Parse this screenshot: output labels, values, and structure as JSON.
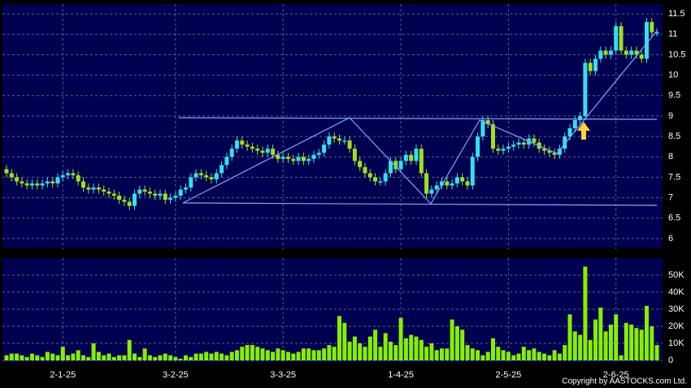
{
  "chart_data": [
    {
      "type": "candlestick",
      "categories": [
        null,
        null,
        null,
        null,
        null,
        null,
        null,
        null,
        null,
        null,
        null,
        "2-1-25",
        null,
        null,
        null,
        null,
        null,
        null,
        null,
        null,
        null,
        null,
        null,
        null,
        null,
        null,
        null,
        null,
        null,
        null,
        null,
        null,
        null,
        "3-2-25",
        null,
        null,
        null,
        null,
        null,
        null,
        null,
        null,
        null,
        null,
        null,
        null,
        null,
        null,
        null,
        null,
        null,
        null,
        null,
        null,
        "3-3-25",
        null,
        null,
        null,
        null,
        null,
        null,
        null,
        null,
        null,
        null,
        null,
        null,
        null,
        null,
        null,
        null,
        null,
        null,
        null,
        null,
        null,
        null,
        "1-4-25",
        null,
        null,
        null,
        null,
        null,
        null,
        null,
        null,
        null,
        null,
        null,
        null,
        null,
        null,
        null,
        null,
        null,
        null,
        null,
        null,
        "2-5-25",
        null,
        null,
        null,
        null,
        null,
        null,
        null,
        null,
        null,
        null,
        null,
        null,
        null,
        null,
        null,
        null,
        null,
        null,
        null,
        null,
        "2-6-25",
        null,
        null,
        null,
        null,
        null,
        null,
        null,
        null
      ],
      "open": [
        7.7,
        7.6,
        7.5,
        7.4,
        7.35,
        7.3,
        7.35,
        7.3,
        7.35,
        7.4,
        7.35,
        7.5,
        7.55,
        7.6,
        7.55,
        7.4,
        7.25,
        7.2,
        7.25,
        7.2,
        7.15,
        7.1,
        7.05,
        6.95,
        6.9,
        6.8,
        7.1,
        7.2,
        7.15,
        7.1,
        7.05,
        7.1,
        6.95,
        7.0,
        7.05,
        7.2,
        7.25,
        7.5,
        7.6,
        7.55,
        7.5,
        7.45,
        7.6,
        7.8,
        8.0,
        8.2,
        8.4,
        8.3,
        8.25,
        8.2,
        8.15,
        8.1,
        8.2,
        8.05,
        7.95,
        8.0,
        7.95,
        7.9,
        8.0,
        7.9,
        7.95,
        8.05,
        8.1,
        8.3,
        8.5,
        8.45,
        8.4,
        8.4,
        8.2,
        7.9,
        7.75,
        7.6,
        7.5,
        7.4,
        7.4,
        7.6,
        7.9,
        7.7,
        7.9,
        8.05,
        7.9,
        8.2,
        7.6,
        7.1,
        7.2,
        7.3,
        7.4,
        7.3,
        7.35,
        7.5,
        7.4,
        7.3,
        8.0,
        8.5,
        8.9,
        8.8,
        8.2,
        8.15,
        8.2,
        8.25,
        8.3,
        8.35,
        8.3,
        8.45,
        8.35,
        8.2,
        8.15,
        8.1,
        8.05,
        8.2,
        8.5,
        8.7,
        8.9,
        9.0,
        10.3,
        10.1,
        10.4,
        10.6,
        10.5,
        10.6,
        11.2,
        10.6,
        10.5,
        10.6,
        10.5,
        10.4,
        11.3,
        11.05
      ],
      "high": [
        7.8,
        7.7,
        7.6,
        7.5,
        7.45,
        7.45,
        7.45,
        7.45,
        7.5,
        7.5,
        7.6,
        7.65,
        7.7,
        7.7,
        7.65,
        7.5,
        7.35,
        7.35,
        7.35,
        7.3,
        7.25,
        7.2,
        7.15,
        7.05,
        7.0,
        7.2,
        7.3,
        7.3,
        7.25,
        7.2,
        7.2,
        7.2,
        7.1,
        7.15,
        7.3,
        7.35,
        7.6,
        7.7,
        7.7,
        7.65,
        7.6,
        7.7,
        7.9,
        8.1,
        8.3,
        8.5,
        8.5,
        8.4,
        8.35,
        8.3,
        8.25,
        8.3,
        8.3,
        8.15,
        8.1,
        8.1,
        8.05,
        8.1,
        8.1,
        8.05,
        8.15,
        8.2,
        8.4,
        8.6,
        8.6,
        8.55,
        8.5,
        8.5,
        8.3,
        8.0,
        7.85,
        7.7,
        7.6,
        7.5,
        7.7,
        8.0,
        8.0,
        8.0,
        8.15,
        8.15,
        8.3,
        8.3,
        7.7,
        7.3,
        7.4,
        7.5,
        7.5,
        7.45,
        7.6,
        7.6,
        7.5,
        8.1,
        8.6,
        9.0,
        9.0,
        8.9,
        8.3,
        8.3,
        8.35,
        8.4,
        8.45,
        8.45,
        8.55,
        8.55,
        8.45,
        8.3,
        8.25,
        8.2,
        8.3,
        8.6,
        8.8,
        9.0,
        9.1,
        10.4,
        10.4,
        10.5,
        10.7,
        10.7,
        10.7,
        11.3,
        11.3,
        10.7,
        10.7,
        10.7,
        10.6,
        11.4,
        11.4,
        11.15
      ],
      "low": [
        7.5,
        7.4,
        7.3,
        7.25,
        7.2,
        7.2,
        7.2,
        7.2,
        7.25,
        7.25,
        7.25,
        7.4,
        7.45,
        7.45,
        7.3,
        7.15,
        7.1,
        7.1,
        7.1,
        7.05,
        7.0,
        6.95,
        6.85,
        6.8,
        6.7,
        6.7,
        7.0,
        7.05,
        7.0,
        6.95,
        6.95,
        6.85,
        6.85,
        6.9,
        6.95,
        7.1,
        7.15,
        7.4,
        7.45,
        7.4,
        7.35,
        7.35,
        7.5,
        7.7,
        7.9,
        8.1,
        8.2,
        8.15,
        8.1,
        8.05,
        8.0,
        8.0,
        7.95,
        7.85,
        7.85,
        7.85,
        7.8,
        7.8,
        7.8,
        7.8,
        7.85,
        7.95,
        8.0,
        8.2,
        8.35,
        8.3,
        8.3,
        8.1,
        7.8,
        7.65,
        7.5,
        7.4,
        7.3,
        7.3,
        7.3,
        7.5,
        7.6,
        7.6,
        7.8,
        7.8,
        7.8,
        7.5,
        7.0,
        7.0,
        7.1,
        7.2,
        7.2,
        7.2,
        7.25,
        7.3,
        7.2,
        7.2,
        7.9,
        8.4,
        8.7,
        8.1,
        8.05,
        8.05,
        8.1,
        8.15,
        8.2,
        8.2,
        8.2,
        8.25,
        8.1,
        8.05,
        8.0,
        7.95,
        7.95,
        8.1,
        8.4,
        8.6,
        8.8,
        8.9,
        10.0,
        10.0,
        10.3,
        10.4,
        10.4,
        10.5,
        10.5,
        10.4,
        10.4,
        10.4,
        10.3,
        10.3,
        10.95,
        10.95
      ],
      "close": [
        7.6,
        7.5,
        7.4,
        7.35,
        7.3,
        7.35,
        7.3,
        7.35,
        7.4,
        7.35,
        7.5,
        7.55,
        7.6,
        7.55,
        7.4,
        7.25,
        7.2,
        7.25,
        7.2,
        7.15,
        7.1,
        7.05,
        6.95,
        6.9,
        6.8,
        7.1,
        7.2,
        7.15,
        7.1,
        7.05,
        7.1,
        6.95,
        7.0,
        7.05,
        7.2,
        7.25,
        7.5,
        7.6,
        7.55,
        7.5,
        7.45,
        7.6,
        7.8,
        8.0,
        8.2,
        8.4,
        8.3,
        8.25,
        8.2,
        8.15,
        8.1,
        8.2,
        8.05,
        7.95,
        8.0,
        7.95,
        7.9,
        8.0,
        7.9,
        7.95,
        8.05,
        8.1,
        8.3,
        8.5,
        8.45,
        8.4,
        8.4,
        8.2,
        7.9,
        7.75,
        7.6,
        7.5,
        7.4,
        7.4,
        7.6,
        7.9,
        7.7,
        7.9,
        8.05,
        7.9,
        8.2,
        7.6,
        7.1,
        7.2,
        7.3,
        7.4,
        7.3,
        7.35,
        7.5,
        7.4,
        7.3,
        8.0,
        8.5,
        8.9,
        8.8,
        8.2,
        8.15,
        8.2,
        8.25,
        8.3,
        8.35,
        8.3,
        8.45,
        8.35,
        8.2,
        8.15,
        8.1,
        8.05,
        8.2,
        8.5,
        8.7,
        8.9,
        9.0,
        10.3,
        10.1,
        10.4,
        10.6,
        10.5,
        10.6,
        11.2,
        10.6,
        10.5,
        10.6,
        10.5,
        10.4,
        11.3,
        11.05,
        11.05
      ],
      "up_color": "#33e0f0",
      "down_color": "#a0e020",
      "ylim": [
        5.78,
        11.74
      ],
      "yticks": [
        6,
        6.5,
        7,
        7.5,
        8,
        8.5,
        9,
        9.5,
        10,
        10.5,
        11,
        11.5
      ],
      "grid": true
    },
    {
      "type": "bar",
      "values": [
        3000,
        4000,
        4000,
        3000,
        2000,
        4000,
        3000,
        2000,
        5000,
        4000,
        3000,
        8000,
        3000,
        4000,
        6000,
        3000,
        2000,
        10000,
        5000,
        3000,
        4000,
        2000,
        3000,
        3000,
        12000,
        4000,
        2000,
        7000,
        3000,
        2000,
        3000,
        4000,
        3000,
        2000,
        1000,
        3000,
        2000,
        4000,
        4000,
        5000,
        4000,
        5000,
        4000,
        3000,
        5000,
        6000,
        8000,
        9000,
        9000,
        8000,
        7000,
        6000,
        5000,
        7000,
        6000,
        5000,
        4000,
        5000,
        7000,
        7000,
        6000,
        6000,
        7000,
        9000,
        8000,
        26000,
        22000,
        11000,
        14000,
        10000,
        8000,
        14000,
        18000,
        8000,
        16000,
        11000,
        9000,
        25000,
        13000,
        15000,
        14000,
        12000,
        8000,
        10000,
        6000,
        7000,
        7000,
        24000,
        20000,
        18000,
        9000,
        7000,
        6000,
        3000,
        5000,
        13000,
        8000,
        6000,
        5000,
        3000,
        4000,
        8000,
        6000,
        7000,
        5000,
        4000,
        3000,
        6000,
        4000,
        9000,
        27000,
        17000,
        15000,
        55000,
        12000,
        24000,
        31000,
        17000,
        21000,
        27000,
        3000,
        22000,
        21000,
        19000,
        18000,
        32000,
        20000,
        9000
      ],
      "color": "#88ee00",
      "ylim": [
        0,
        60000
      ],
      "yticks": [
        0,
        {
          "value": 10000,
          "label": "10K"
        },
        {
          "value": 20000,
          "label": "20K"
        },
        {
          "value": 30000,
          "label": "30K"
        },
        {
          "value": 40000,
          "label": "40K"
        },
        {
          "value": 50000,
          "label": "50K"
        }
      ],
      "grid": true
    }
  ],
  "footer": "Copyright by AASTOCKS.com Ltd."
}
